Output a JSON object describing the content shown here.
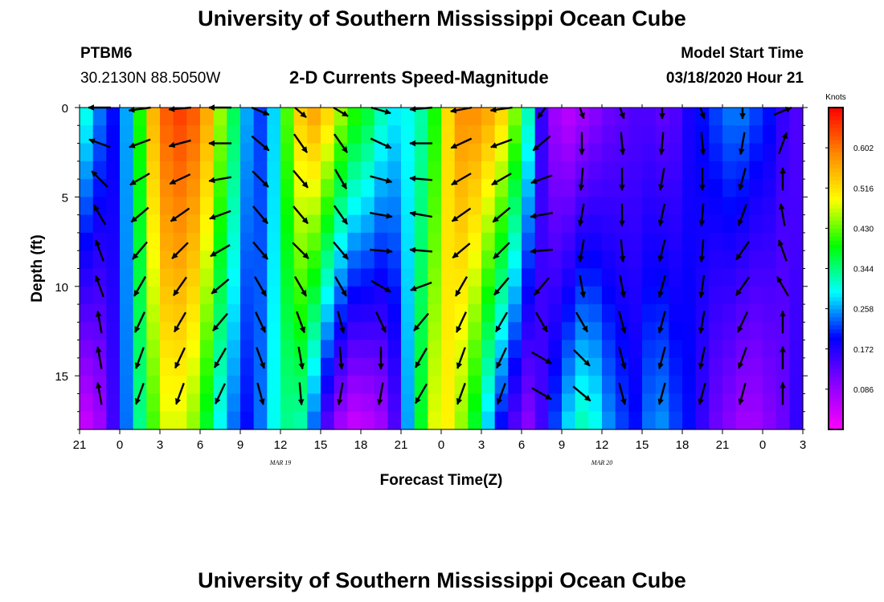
{
  "header": {
    "title_top": "University of Southern Mississippi Ocean Cube",
    "title_bottom": "University of Southern Mississippi Ocean Cube",
    "station_id": "PTBM6",
    "station_coords": "30.2130N 88.5050W",
    "chart_subtitle": "2-D Currents Speed-Magnitude",
    "model_label": "Model Start Time",
    "model_time": "03/18/2020 Hour 21"
  },
  "chart_data": {
    "type": "heatmap",
    "title": "2-D Currents Speed-Magnitude",
    "xlabel": "Forecast Time(Z)",
    "ylabel": "Depth (ft)",
    "x_ticks": [
      "21",
      "0",
      "3",
      "6",
      "9",
      "12",
      "15",
      "18",
      "21",
      "0",
      "3",
      "6",
      "9",
      "12",
      "15",
      "18",
      "21",
      "0",
      "3"
    ],
    "x_hours_range": [
      0,
      54
    ],
    "date_labels": [
      {
        "text": "MAR 19",
        "hour": 15
      },
      {
        "text": "MAR 20",
        "hour": 39
      }
    ],
    "y_ticks": [
      0,
      5,
      10,
      15
    ],
    "ylim": [
      0,
      18
    ],
    "y_inverted": true,
    "colorbar": {
      "unit": "Knots",
      "range": [
        0,
        0.688
      ],
      "tick_values": [
        0.086,
        0.172,
        0.258,
        0.344,
        0.43,
        0.516,
        0.602
      ],
      "tick_labels": [
        "0.086",
        "0.172",
        "0.258",
        "0.344",
        "0.430",
        "0.516",
        "0.602"
      ],
      "colors": [
        "#ff00ff",
        "#8800ff",
        "#0000ff",
        "#00ffff",
        "#00ff00",
        "#ffff00",
        "#ff8800",
        "#ff0000"
      ]
    },
    "speed_profile_hours": [
      0,
      1,
      2,
      3,
      4,
      5,
      6,
      7,
      8,
      9,
      10,
      11,
      12,
      13,
      14,
      15,
      16,
      17,
      18,
      19,
      20,
      21,
      22,
      23,
      24,
      25,
      26,
      27,
      28,
      29,
      30,
      31,
      32,
      33,
      34,
      35,
      36,
      37,
      38,
      39,
      40,
      41,
      42,
      43,
      44,
      45,
      46,
      47,
      48,
      49,
      50,
      51,
      52,
      53,
      54
    ],
    "speed_top_knots": [
      0.3,
      0.24,
      0.2,
      0.26,
      0.4,
      0.55,
      0.62,
      0.64,
      0.62,
      0.56,
      0.45,
      0.36,
      0.26,
      0.22,
      0.28,
      0.42,
      0.53,
      0.56,
      0.52,
      0.45,
      0.4,
      0.37,
      0.32,
      0.29,
      0.3,
      0.33,
      0.4,
      0.52,
      0.58,
      0.58,
      0.56,
      0.52,
      0.44,
      0.32,
      0.16,
      0.08,
      0.06,
      0.08,
      0.1,
      0.12,
      0.13,
      0.14,
      0.14,
      0.13,
      0.14,
      0.18,
      0.2,
      0.22,
      0.24,
      0.24,
      0.22,
      0.2,
      0.16,
      0.14,
      0.14
    ],
    "speed_bottom_knots": [
      0.05,
      0.08,
      0.15,
      0.24,
      0.34,
      0.42,
      0.48,
      0.48,
      0.45,
      0.38,
      0.3,
      0.24,
      0.2,
      0.24,
      0.3,
      0.34,
      0.33,
      0.24,
      0.14,
      0.08,
      0.05,
      0.06,
      0.08,
      0.14,
      0.26,
      0.38,
      0.48,
      0.5,
      0.45,
      0.38,
      0.28,
      0.2,
      0.14,
      0.1,
      0.15,
      0.22,
      0.28,
      0.32,
      0.3,
      0.25,
      0.22,
      0.2,
      0.24,
      0.25,
      0.22,
      0.2,
      0.16,
      0.12,
      0.1,
      0.08,
      0.08,
      0.1,
      0.12,
      0.16,
      0.18
    ],
    "vector_hours": [
      1.5,
      4.5,
      7.5,
      10.5,
      13.5,
      16.5,
      19.5,
      22.5,
      25.5,
      28.5,
      31.5,
      34.5,
      37.5,
      40.5,
      43.5,
      46.5,
      49.5,
      52.5
    ],
    "vector_depths": [
      0,
      2,
      4,
      6,
      8,
      10,
      12,
      14,
      16
    ],
    "vector_directions_deg": [
      [
        180,
        160,
        135,
        120,
        110,
        110,
        100,
        100,
        100
      ],
      [
        195,
        200,
        210,
        220,
        230,
        240,
        245,
        250,
        250
      ],
      [
        190,
        195,
        205,
        215,
        225,
        235,
        240,
        245,
        250
      ],
      [
        180,
        180,
        190,
        200,
        210,
        220,
        230,
        240,
        245
      ],
      [
        320,
        320,
        315,
        310,
        310,
        300,
        295,
        290,
        285
      ],
      [
        300,
        305,
        310,
        310,
        315,
        300,
        290,
        280,
        275
      ],
      [
        310,
        305,
        300,
        305,
        310,
        300,
        285,
        275,
        260
      ],
      [
        330,
        335,
        345,
        350,
        355,
        330,
        295,
        270,
        260
      ],
      [
        190,
        180,
        175,
        170,
        175,
        200,
        230,
        240,
        240
      ],
      [
        200,
        205,
        210,
        215,
        220,
        240,
        245,
        250,
        250
      ],
      [
        195,
        200,
        210,
        220,
        225,
        230,
        240,
        245,
        250
      ],
      [
        250,
        220,
        200,
        190,
        185,
        230,
        300,
        330,
        330
      ],
      [
        280,
        270,
        265,
        260,
        260,
        280,
        300,
        315,
        320
      ],
      [
        280,
        275,
        270,
        270,
        275,
        280,
        285,
        285,
        285
      ],
      [
        270,
        265,
        260,
        258,
        256,
        255,
        255,
        255,
        255
      ],
      [
        280,
        275,
        270,
        265,
        265,
        262,
        260,
        258,
        255
      ],
      [
        270,
        260,
        255,
        250,
        235,
        235,
        245,
        250,
        255
      ],
      [
        40,
        70,
        90,
        100,
        110,
        120,
        90,
        90,
        90
      ]
    ]
  }
}
